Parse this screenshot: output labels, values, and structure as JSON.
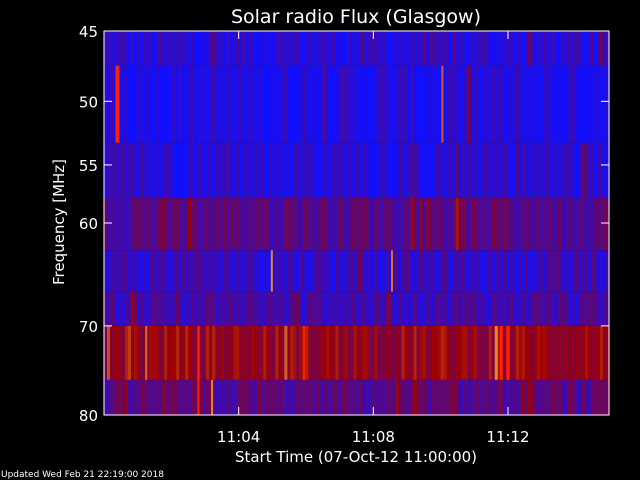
{
  "chart_data": {
    "type": "heatmap",
    "title": "Solar radio Flux (Glasgow)",
    "xlabel": "Start Time (07-Oct-12 11:00:00)",
    "ylabel": "Frequency [MHz]",
    "x_ticks": [
      {
        "minutes": 4,
        "label": "11:04"
      },
      {
        "minutes": 8,
        "label": "11:08"
      },
      {
        "minutes": 12,
        "label": "11:12"
      }
    ],
    "y_ticks": [
      {
        "mhz": 45,
        "label": "45"
      },
      {
        "mhz": 50,
        "label": "50"
      },
      {
        "mhz": 55,
        "label": "55"
      },
      {
        "mhz": 60,
        "label": "60"
      },
      {
        "mhz": 70,
        "label": "70"
      },
      {
        "mhz": 80,
        "label": "80"
      }
    ],
    "x_range_minutes": [
      0,
      15
    ],
    "y_range_mhz": [
      45,
      80
    ],
    "bands": [
      {
        "f_low": 45,
        "f_high": 47.4,
        "base_level": 0.1
      },
      {
        "f_low": 47.4,
        "f_high": 53.2,
        "base_level": 0.06
      },
      {
        "f_low": 53.2,
        "f_high": 57.8,
        "base_level": 0.1
      },
      {
        "f_low": 57.8,
        "f_high": 62.5,
        "base_level": 0.3
      },
      {
        "f_low": 62.5,
        "f_high": 66.5,
        "base_level": 0.15
      },
      {
        "f_low": 66.5,
        "f_high": 70.0,
        "base_level": 0.2
      },
      {
        "f_low": 70.0,
        "f_high": 75.9,
        "base_level": 0.55
      },
      {
        "f_low": 75.9,
        "f_high": 80,
        "base_level": 0.28
      }
    ],
    "bursts": [
      {
        "t": 0.4,
        "t_width": 0.12,
        "f_low": 47.4,
        "f_high": 53.2,
        "level": 0.95
      },
      {
        "t": 10.05,
        "t_width": 0.06,
        "f_low": 47.4,
        "f_high": 53.2,
        "level": 0.8
      },
      {
        "t": 4.98,
        "t_width": 0.05,
        "f_low": 62.5,
        "f_high": 66.5,
        "level": 0.9
      },
      {
        "t": 2.8,
        "t_width": 0.05,
        "f_low": 70.0,
        "f_high": 80,
        "level": 1.0
      },
      {
        "t": 5.94,
        "t_width": 0.06,
        "f_low": 70.0,
        "f_high": 75.9,
        "level": 0.95
      },
      {
        "t": 11.8,
        "t_width": 0.09,
        "f_low": 70.0,
        "f_high": 75.9,
        "level": 1.0
      },
      {
        "t": 12.0,
        "t_width": 0.1,
        "f_low": 70.0,
        "f_high": 75.9,
        "level": 1.0
      },
      {
        "t": 1.25,
        "t_width": 0.05,
        "f_low": 70.0,
        "f_high": 75.9,
        "level": 0.85
      },
      {
        "t": 8.55,
        "t_width": 0.05,
        "f_low": 62.5,
        "f_high": 66.5,
        "level": 0.85
      },
      {
        "t": 3.2,
        "t_width": 0.04,
        "f_low": 75.9,
        "f_high": 80,
        "level": 0.9
      }
    ],
    "colors": {
      "low": "#1010ff",
      "mid": "#a00000",
      "high": "#ffb030",
      "background": "#000000",
      "axes": "#ffffff"
    }
  },
  "footer": {
    "updated": "Updated Wed Feb 21 22:19:00 2018"
  }
}
